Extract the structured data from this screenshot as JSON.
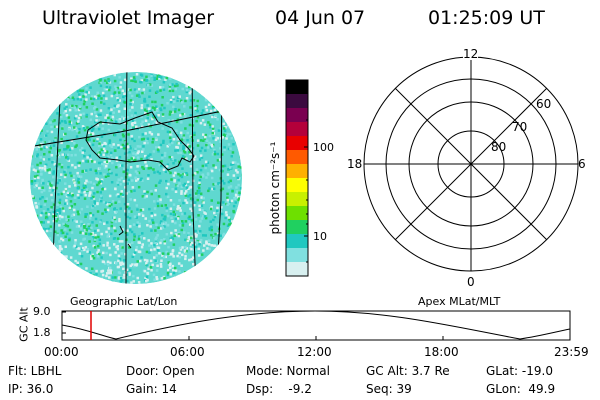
{
  "header": {
    "title": "Ultraviolet Imager",
    "date": "04 Jun 07",
    "time": "01:25:09 UT"
  },
  "colorbar": {
    "unit_label": "photon cm⁻²s⁻¹",
    "ticks": [
      "100",
      "10"
    ],
    "colors": [
      "#000000",
      "#3b0a3f",
      "#7a0050",
      "#b4003a",
      "#e80000",
      "#ff5a00",
      "#ffb000",
      "#ffff00",
      "#c8f000",
      "#6ee000",
      "#20d060",
      "#20c8c0",
      "#80e0e0",
      "#d8f0f0"
    ]
  },
  "globe": {
    "caption": "Geographic Lat/Lon",
    "image_colors": [
      "#20c8c0",
      "#80e0e0",
      "#20d060",
      "#d8f0f0"
    ]
  },
  "polar": {
    "caption": "Apex MLat/MLT",
    "mlt_labels": {
      "top": "12",
      "left": "18",
      "right": "6",
      "bottom": "0"
    },
    "mlat_labels": [
      "60",
      "70",
      "80"
    ]
  },
  "orbit": {
    "ylabel": "GC Alt",
    "ymax": "9.0",
    "ymin": "1.8",
    "xticks": [
      "00:00",
      "06:00",
      "12:00",
      "18:00",
      "23:59"
    ],
    "current_marker_color": "#e00000"
  },
  "info": {
    "filter": "Flt: LBHL",
    "ip": "IP: 36.0",
    "door": "Door: Open",
    "gain": "Gain: 14",
    "mode": "Mode: Normal",
    "dsp": "Dsp:    -9.2",
    "gc_alt": "GC Alt: 3.7 Re",
    "seq": "Seq: 39",
    "glat": "GLat: -19.0",
    "glon": "GLon:  49.9"
  }
}
